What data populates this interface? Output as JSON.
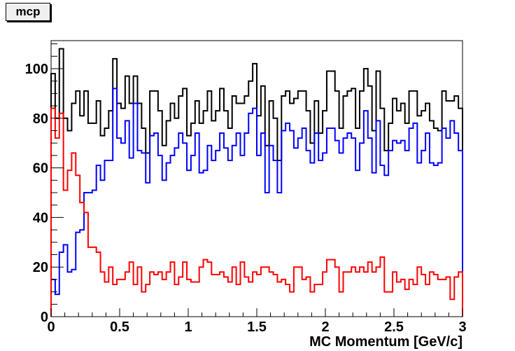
{
  "chart_data": {
    "type": "histogram",
    "title": "mcp",
    "xlabel": "MC Momentum [GeV/c]",
    "ylabel": "",
    "xlim": [
      0,
      3
    ],
    "ylim": [
      0,
      111.3
    ],
    "bins": 100,
    "bin_width": 0.03,
    "grid": false,
    "x_ticks": [
      "0",
      "0.5",
      "1",
      "1.5",
      "2",
      "2.5",
      "3"
    ],
    "x_tick_values": [
      0,
      0.5,
      1,
      1.5,
      2,
      2.5,
      3
    ],
    "y_ticks": [
      "0",
      "20",
      "40",
      "60",
      "80",
      "100"
    ],
    "y_tick_values": [
      0,
      20,
      40,
      60,
      80,
      100
    ],
    "series": [
      {
        "name": "black",
        "color": "#000000",
        "values": [
          98,
          80,
          108,
          80,
          75,
          86,
          91,
          81,
          91,
          78,
          78,
          87,
          73,
          76,
          83,
          104,
          86,
          84,
          97,
          86,
          97,
          86,
          76,
          66,
          91,
          91,
          83,
          69,
          79,
          86,
          80,
          89,
          92,
          73,
          78,
          87,
          78,
          83,
          91,
          79,
          83,
          92,
          83,
          76,
          89,
          86,
          86,
          89,
          95,
          102,
          81,
          93,
          69,
          87,
          80,
          63,
          89,
          91,
          86,
          88,
          91,
          91,
          83,
          70,
          87,
          74,
          83,
          99,
          99,
          91,
          76,
          89,
          91,
          92,
          76,
          91,
          100,
          93,
          75,
          99,
          84,
          67,
          78,
          88,
          83,
          86,
          78,
          91,
          91,
          81,
          83,
          86,
          79,
          76,
          75,
          91,
          87,
          87,
          89,
          84
        ]
      },
      {
        "name": "blue",
        "color": "#0000ff",
        "values": [
          15,
          9,
          26,
          29,
          18,
          19,
          34,
          35,
          50,
          50,
          51,
          61,
          55,
          63,
          63,
          92,
          72,
          70,
          79,
          64,
          86,
          67,
          66,
          54,
          73,
          74,
          65,
          55,
          62,
          65,
          68,
          74,
          70,
          59,
          65,
          74,
          58,
          59,
          69,
          63,
          67,
          74,
          68,
          63,
          69,
          74,
          65,
          74,
          82,
          84,
          65,
          74,
          50,
          69,
          63,
          50,
          75,
          78,
          75,
          68,
          72,
          76,
          67,
          62,
          74,
          63,
          66,
          76,
          76,
          71,
          66,
          72,
          74,
          72,
          59,
          70,
          83,
          72,
          58,
          79,
          61,
          57,
          67,
          71,
          70,
          71,
          67,
          76,
          78,
          62,
          67,
          74,
          62,
          61,
          62,
          76,
          72,
          79,
          74,
          67
        ]
      },
      {
        "name": "red",
        "color": "#ff0000",
        "values": [
          84,
          72,
          82,
          51,
          59,
          66,
          57,
          46,
          42,
          28,
          28,
          26,
          18,
          14,
          20,
          13,
          15,
          15,
          18,
          22,
          13,
          20,
          10,
          13,
          18,
          17,
          18,
          15,
          18,
          22,
          13,
          16,
          22,
          15,
          14,
          14,
          20,
          23,
          22,
          17,
          17,
          18,
          16,
          14,
          20,
          13,
          22,
          16,
          14,
          18,
          17,
          20,
          20,
          18,
          17,
          14,
          15,
          13,
          10,
          20,
          20,
          15,
          16,
          10,
          13,
          13,
          18,
          23,
          23,
          20,
          10,
          18,
          18,
          20,
          18,
          20,
          18,
          22,
          18,
          20,
          24,
          10,
          10,
          18,
          14,
          15,
          11,
          15,
          13,
          20,
          17,
          13,
          18,
          17,
          15,
          15,
          16,
          7,
          16,
          18
        ]
      }
    ]
  }
}
